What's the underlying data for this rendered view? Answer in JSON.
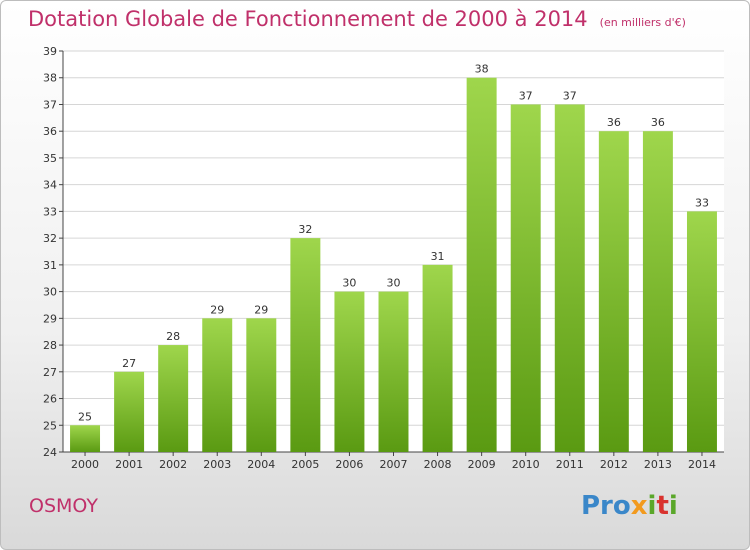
{
  "title": "Dotation Globale de Fonctionnement de 2000 à 2014",
  "subtitle": "(en milliers d'€)",
  "commune": "OSMOY",
  "logo": {
    "text": "Proxiti"
  },
  "colors": {
    "title": "#c0306a",
    "bar_top": "#9fd64c",
    "bar_bottom": "#5a9a12",
    "grid": "#d6d6d6",
    "axis": "#444444"
  },
  "chart_data": {
    "type": "bar",
    "categories": [
      "2000",
      "2001",
      "2002",
      "2003",
      "2004",
      "2005",
      "2006",
      "2007",
      "2008",
      "2009",
      "2010",
      "2011",
      "2012",
      "2013",
      "2014"
    ],
    "values": [
      25,
      27,
      28,
      29,
      29,
      32,
      30,
      30,
      31,
      38,
      37,
      37,
      36,
      36,
      33
    ],
    "ylim": [
      24,
      39
    ],
    "yticks": [
      24,
      25,
      26,
      27,
      28,
      29,
      30,
      31,
      32,
      33,
      34,
      35,
      36,
      37,
      38,
      39
    ],
    "grid": true,
    "xlabel": "",
    "ylabel": ""
  }
}
